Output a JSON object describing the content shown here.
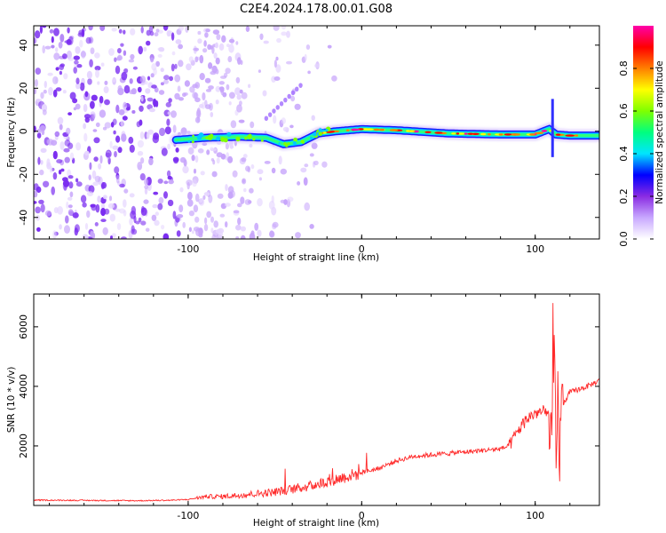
{
  "figure": {
    "title": "C2E4.2024.178.00.01.G08"
  },
  "chart_data": [
    {
      "type": "heatmap",
      "title": "C2E4.2024.178.00.01.G08",
      "xlabel": "Height of straight line (km)",
      "ylabel": "Frequency (Hz)",
      "xlim": [
        -189,
        137
      ],
      "ylim": [
        -50,
        49
      ],
      "x_ticks": [
        -100,
        0,
        100
      ],
      "y_ticks": [
        -40,
        -20,
        0,
        20,
        40
      ],
      "grid": false,
      "colorbar": {
        "label": "Normalized spectral amplitude",
        "range": [
          0,
          1
        ],
        "ticks": [
          "0.0",
          "0.2",
          "0.4",
          "0.6",
          "0.8"
        ],
        "colormap": [
          "#ffffff",
          "#c8a8ff",
          "#8a2be2",
          "#0000ff",
          "#00e5ff",
          "#00ff7f",
          "#7fff00",
          "#ffff00",
          "#ff7f00",
          "#ff0000",
          "#ff00aa"
        ]
      },
      "noise_region_x": [
        -189,
        -62
      ],
      "signal_ridge": {
        "x": [
          -107,
          -90,
          -70,
          -55,
          -45,
          -35,
          -25,
          -15,
          0,
          20,
          50,
          80,
          100,
          108,
          112,
          120,
          137
        ],
        "y": [
          -4,
          -3,
          -2.5,
          -3,
          -6,
          -5,
          -1,
          0,
          1,
          0.5,
          -1,
          -1.5,
          -1.5,
          1,
          -1.5,
          -2,
          -2
        ],
        "peak_amplitude": 1.0
      }
    },
    {
      "type": "line",
      "xlabel": "Height of straight line (km)",
      "ylabel": "SNR (10 * v/v)",
      "xlim": [
        -189,
        137
      ],
      "ylim": [
        0,
        7100
      ],
      "x_ticks": [
        -100,
        0,
        100
      ],
      "y_ticks": [
        2000,
        4000,
        6000
      ],
      "grid": false,
      "color": "#ff2a2a",
      "series": [
        {
          "x": [
            -189,
            -160,
            -130,
            -110,
            -100,
            -90,
            -80,
            -70,
            -60,
            -50,
            -40,
            -30,
            -20,
            -10,
            0,
            10,
            20,
            30,
            40,
            50,
            60,
            70,
            80,
            85,
            90,
            95,
            100,
            105,
            108,
            110,
            111,
            112,
            113,
            114,
            115,
            118,
            120,
            125,
            130,
            137
          ],
          "y": [
            180,
            170,
            160,
            175,
            200,
            300,
            300,
            350,
            400,
            450,
            550,
            650,
            800,
            950,
            1100,
            1250,
            1500,
            1650,
            1700,
            1750,
            1800,
            1850,
            1900,
            2000,
            2500,
            2900,
            3100,
            3150,
            3000,
            2200,
            5500,
            1200,
            3800,
            1500,
            3300,
            3600,
            3800,
            3900,
            4000,
            4200
          ]
        }
      ]
    }
  ]
}
